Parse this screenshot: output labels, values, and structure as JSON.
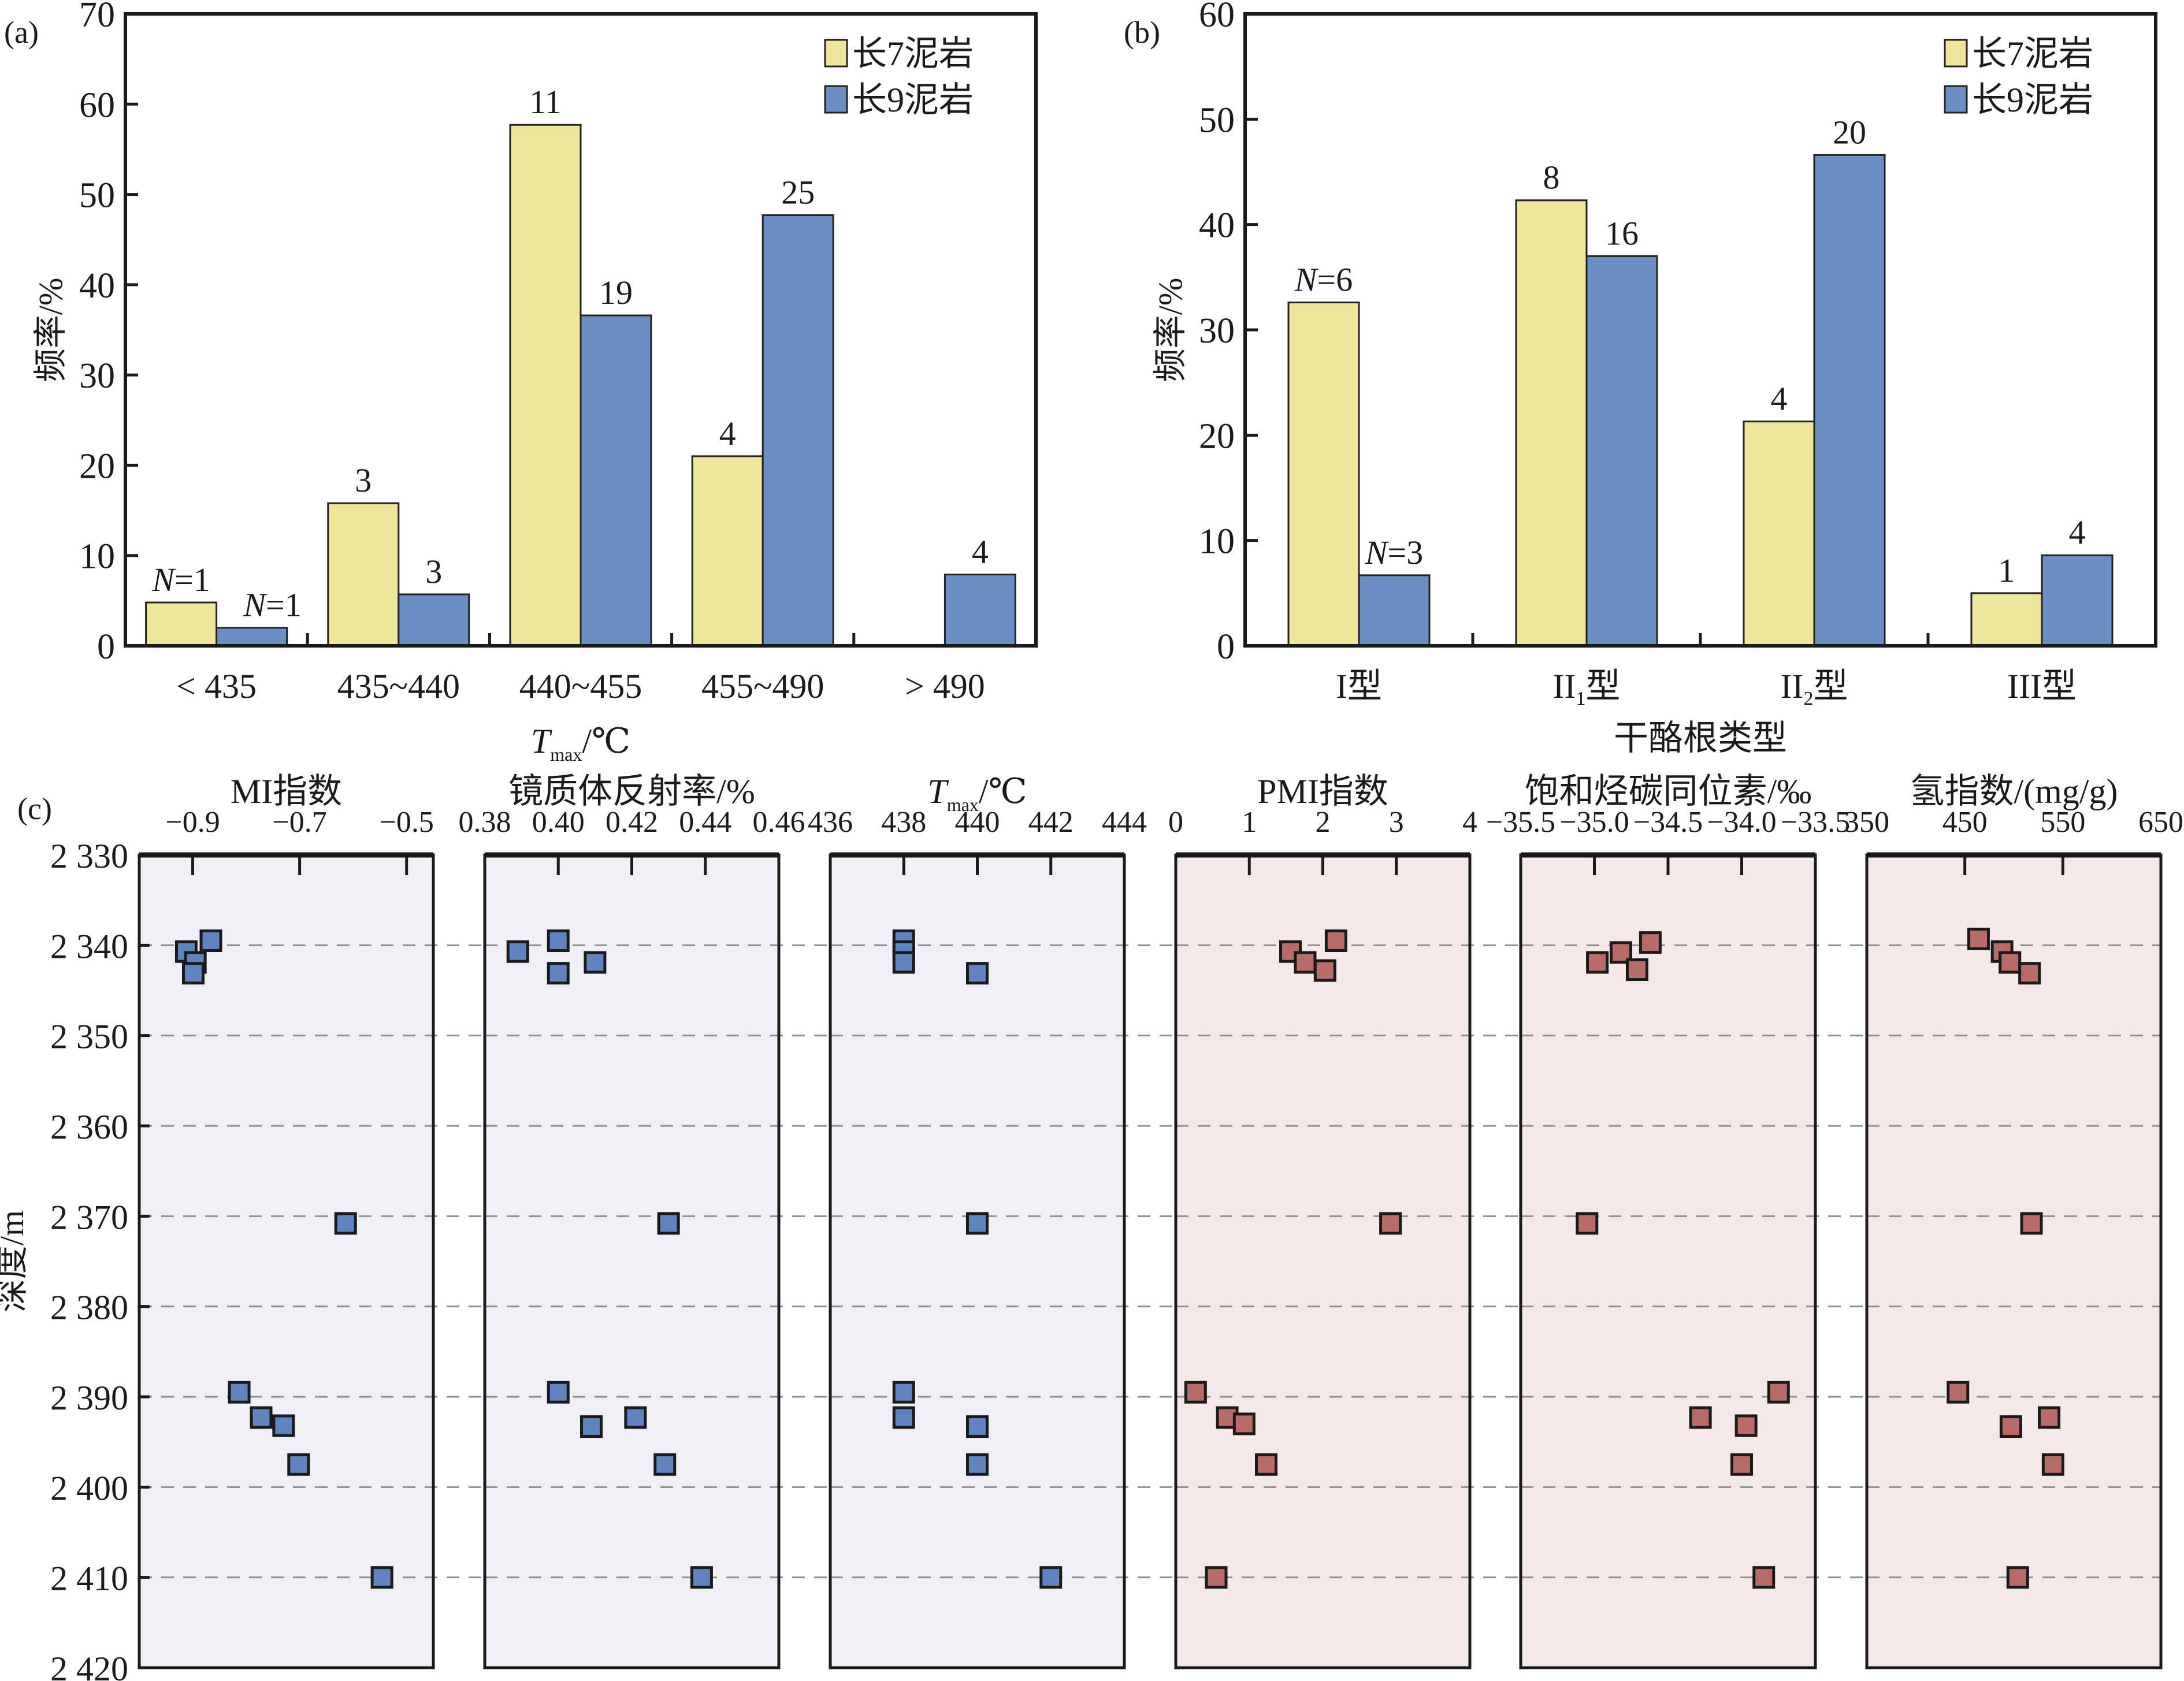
{
  "colors": {
    "chang7": "#EEE69A",
    "chang9": "#6B8FC4",
    "panel_bg_blue": "#EFEFF5",
    "panel_bg_red": "#F5E9E8",
    "marker_blue": "#5F84C0",
    "marker_red": "#B86C6A",
    "grid": "#8f8f8f",
    "axis": "#1a1a1a"
  },
  "chart_data": [
    {
      "id": "a",
      "panel_label": "(a)",
      "type": "bar",
      "title": "",
      "xlabel_main": "T",
      "xlabel_sub": "max",
      "xlabel_unit": "/℃",
      "ylabel": "频率/%",
      "ylim": [
        0,
        70
      ],
      "yticks": [
        0,
        10,
        20,
        30,
        40,
        50,
        60,
        70
      ],
      "categories": [
        "< 435",
        "435~440",
        "440~455",
        "455~490",
        "> 490"
      ],
      "legend_position": "top-right",
      "series": [
        {
          "name": "长7泥岩",
          "values": [
            4.8,
            15.8,
            57.7,
            21.0,
            0
          ],
          "labels": [
            "N=1",
            "3",
            "11",
            "4",
            ""
          ]
        },
        {
          "name": "长9泥岩",
          "values": [
            2.0,
            5.7,
            36.6,
            47.7,
            7.9
          ],
          "labels": [
            "N=1",
            "3",
            "19",
            "25",
            "4"
          ]
        }
      ]
    },
    {
      "id": "b",
      "panel_label": "(b)",
      "type": "bar",
      "title": "",
      "xlabel": "干酪根类型",
      "ylabel": "频率/%",
      "ylim": [
        0,
        60
      ],
      "yticks": [
        0,
        10,
        20,
        30,
        40,
        50,
        60
      ],
      "categories": [
        "I型",
        "II1型",
        "II2型",
        "III型"
      ],
      "category_parts": [
        [
          "I",
          "",
          "型"
        ],
        [
          "II",
          "1",
          "型"
        ],
        [
          "II",
          "2",
          "型"
        ],
        [
          "III",
          "",
          "型"
        ]
      ],
      "legend_position": "top-right",
      "series": [
        {
          "name": "长7泥岩",
          "values": [
            32.6,
            42.3,
            21.3,
            5.0
          ],
          "labels": [
            "N=6",
            "8",
            "4",
            "1"
          ]
        },
        {
          "name": "长9泥岩",
          "values": [
            6.7,
            37.0,
            46.6,
            8.6
          ],
          "labels": [
            "N=3",
            "16",
            "20",
            "4"
          ]
        }
      ]
    },
    {
      "id": "c",
      "panel_label": "(c)",
      "type": "scatter",
      "ylabel": "深度/m",
      "ylim": [
        2330,
        2420
      ],
      "yticks": [
        2330,
        2340,
        2350,
        2360,
        2370,
        2380,
        2390,
        2400,
        2410,
        2420
      ],
      "ytick_labels": [
        "2 330",
        "2 340",
        "2 350",
        "2 360",
        "2 370",
        "2 380",
        "2 390",
        "2 400",
        "2 410",
        "2 420"
      ],
      "y_inverted": true,
      "grid": "horizontal dashed",
      "tracks": [
        {
          "title": "MI指数",
          "theme": "blue",
          "xlim": [
            -1.0,
            -0.45
          ],
          "xticks": [
            -0.9,
            -0.7,
            -0.5
          ],
          "xtick_labels": [
            "−0.9",
            "−0.7",
            "−0.5"
          ],
          "points": [
            [
              -0.866,
              2339.5
            ],
            [
              -0.912,
              2340.7
            ],
            [
              -0.895,
              2341.9
            ],
            [
              -0.899,
              2343.1
            ],
            [
              -0.614,
              2370.8
            ],
            [
              -0.813,
              2389.5
            ],
            [
              -0.772,
              2392.3
            ],
            [
              -0.73,
              2393.2
            ],
            [
              -0.702,
              2397.5
            ],
            [
              -0.546,
              2410.0
            ]
          ]
        },
        {
          "title": "镜质体反射率/%",
          "theme": "blue",
          "xlim": [
            0.38,
            0.46
          ],
          "xticks": [
            0.38,
            0.4,
            0.42,
            0.44,
            0.46
          ],
          "xtick_labels": [
            "0.38",
            "0.40",
            "0.42",
            "0.44",
            "0.46"
          ],
          "points": [
            [
              0.4,
              2339.5
            ],
            [
              0.389,
              2340.7
            ],
            [
              0.41,
              2341.9
            ],
            [
              0.4,
              2343.1
            ],
            [
              0.43,
              2370.8
            ],
            [
              0.4,
              2389.5
            ],
            [
              0.421,
              2392.3
            ],
            [
              0.409,
              2393.3
            ],
            [
              0.429,
              2397.5
            ],
            [
              0.439,
              2410.0
            ]
          ]
        },
        {
          "title_main": "T",
          "title_sub": "max",
          "title_unit": "/℃",
          "theme": "blue",
          "xlim": [
            436,
            444
          ],
          "xticks": [
            436,
            438,
            440,
            442,
            444
          ],
          "xtick_labels": [
            "436",
            "438",
            "440",
            "442",
            "444"
          ],
          "points": [
            [
              438,
              2339.5
            ],
            [
              438,
              2340.7
            ],
            [
              438,
              2341.9
            ],
            [
              440,
              2343.1
            ],
            [
              440,
              2370.8
            ],
            [
              438,
              2389.5
            ],
            [
              438,
              2392.3
            ],
            [
              440,
              2393.3
            ],
            [
              440,
              2397.5
            ],
            [
              442,
              2410.0
            ]
          ]
        },
        {
          "title": "PMI指数",
          "theme": "red",
          "xlim": [
            0,
            4
          ],
          "xticks": [
            0,
            1,
            2,
            3,
            4
          ],
          "xtick_labels": [
            "0",
            "1",
            "2",
            "3",
            "4"
          ],
          "points": [
            [
              2.18,
              2339.5
            ],
            [
              1.56,
              2340.7
            ],
            [
              1.76,
              2341.9
            ],
            [
              2.03,
              2342.8
            ],
            [
              2.92,
              2370.8
            ],
            [
              0.27,
              2389.5
            ],
            [
              0.7,
              2392.3
            ],
            [
              0.93,
              2393.0
            ],
            [
              1.23,
              2397.5
            ],
            [
              0.55,
              2410.0
            ]
          ]
        },
        {
          "title": "饱和烃碳同位素/‰",
          "theme": "red",
          "xlim": [
            -35.5,
            -33.5
          ],
          "xticks": [
            -35.5,
            -35.0,
            -34.5,
            -34.0,
            -33.5
          ],
          "xtick_labels": [
            "−35.5",
            "−35.0",
            "−34.5",
            "−34.0",
            "−33.5"
          ],
          "points": [
            [
              -34.62,
              2339.7
            ],
            [
              -34.82,
              2340.8
            ],
            [
              -34.98,
              2341.9
            ],
            [
              -34.71,
              2342.7
            ],
            [
              -35.05,
              2370.8
            ],
            [
              -33.75,
              2389.5
            ],
            [
              -34.28,
              2392.3
            ],
            [
              -33.97,
              2393.2
            ],
            [
              -34.0,
              2397.5
            ],
            [
              -33.85,
              2410.0
            ]
          ]
        },
        {
          "title": "氢指数/(mg/g)",
          "theme": "red",
          "xlim": [
            350,
            650
          ],
          "xticks": [
            350,
            450,
            550,
            650
          ],
          "xtick_labels": [
            "350",
            "450",
            "550",
            "650"
          ],
          "points": [
            [
              464,
              2339.3
            ],
            [
              488,
              2340.7
            ],
            [
              496,
              2341.9
            ],
            [
              516,
              2343.1
            ],
            [
              518,
              2370.8
            ],
            [
              443,
              2389.5
            ],
            [
              536,
              2392.3
            ],
            [
              497,
              2393.3
            ],
            [
              540,
              2397.5
            ],
            [
              504,
              2410.0
            ]
          ]
        }
      ]
    }
  ]
}
